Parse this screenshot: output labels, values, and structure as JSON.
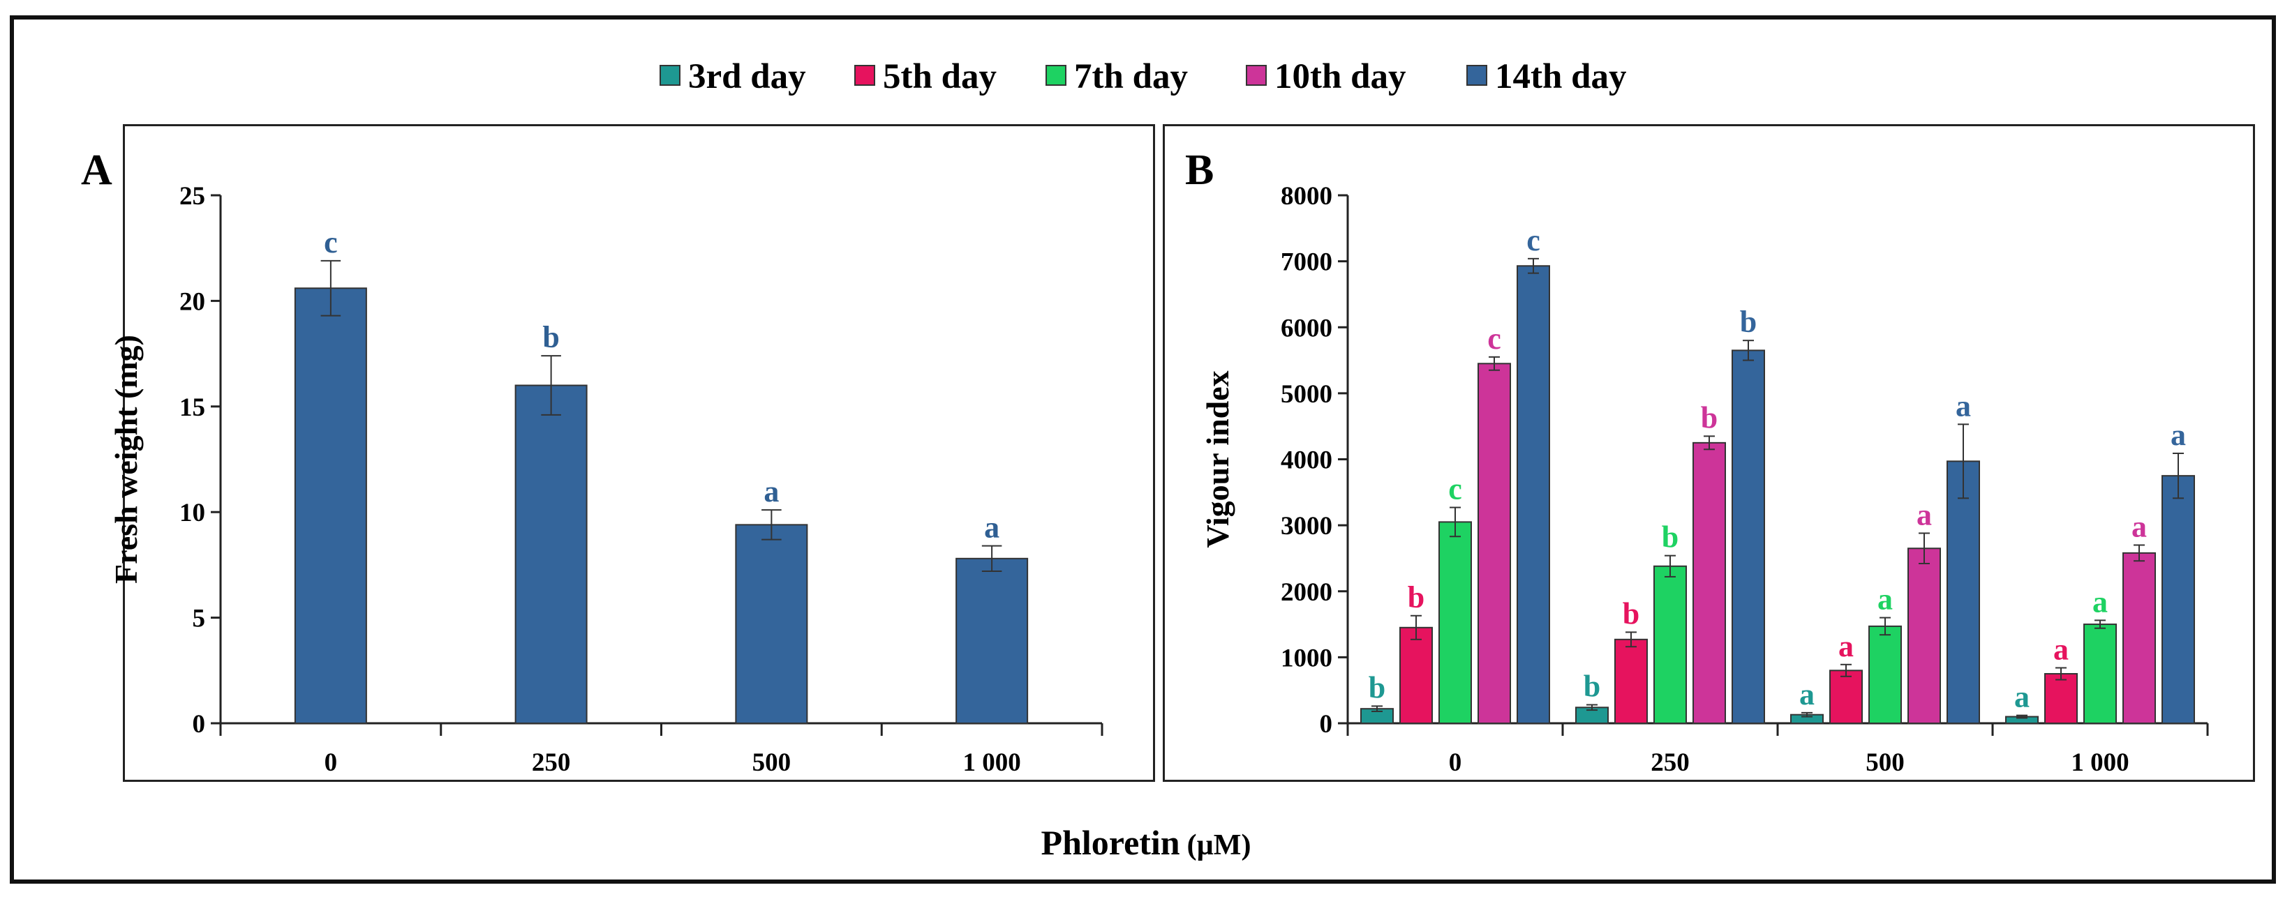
{
  "legend": [
    "3rd day",
    "5th day",
    "7th day",
    "10th day",
    "14th day"
  ],
  "colors": {
    "3rd day": "#1e9892",
    "5th day": "#e6135e",
    "7th day": "#1ed262",
    "10th day": "#cd3499",
    "14th day": "#34659b",
    "letter_default": "#2f5f93"
  },
  "x_axis_title": {
    "main": "Phloretin",
    "unit": "(µM)"
  },
  "chart_data": [
    {
      "type": "bar",
      "panel_label": "A",
      "categories": [
        "0",
        "250",
        "500",
        "1 000"
      ],
      "ylabel": "Fresh weight (mg)",
      "ylim": [
        0,
        25
      ],
      "yticks": [
        0,
        5,
        10,
        15,
        20,
        25
      ],
      "values": [
        20.6,
        16.0,
        9.4,
        7.8
      ],
      "errors": [
        1.3,
        1.4,
        0.7,
        0.6
      ],
      "letters": [
        "c",
        "b",
        "a",
        "a"
      ],
      "grid": false
    },
    {
      "type": "bar",
      "panel_label": "B",
      "categories": [
        "0",
        "250",
        "500",
        "1 000"
      ],
      "ylabel": "Vigour index",
      "ylim": [
        0,
        8000
      ],
      "yticks": [
        0,
        1000,
        2000,
        3000,
        4000,
        5000,
        6000,
        7000,
        8000
      ],
      "grid": false,
      "series": [
        {
          "name": "3rd day",
          "values": [
            220,
            240,
            130,
            100
          ],
          "errors": [
            40,
            40,
            30,
            20
          ],
          "letters": [
            "b",
            "b",
            "a",
            "a"
          ]
        },
        {
          "name": "5th day",
          "values": [
            1450,
            1270,
            800,
            750
          ],
          "errors": [
            180,
            110,
            90,
            90
          ],
          "letters": [
            "b",
            "b",
            "a",
            "a"
          ]
        },
        {
          "name": "7th day",
          "values": [
            3050,
            2380,
            1470,
            1500
          ],
          "errors": [
            220,
            160,
            130,
            60
          ],
          "letters": [
            "c",
            "b",
            "a",
            "a"
          ]
        },
        {
          "name": "10th day",
          "values": [
            5450,
            4250,
            2650,
            2580
          ],
          "errors": [
            100,
            100,
            230,
            120
          ],
          "letters": [
            "c",
            "b",
            "a",
            "a"
          ]
        },
        {
          "name": "14th day",
          "values": [
            6930,
            5650,
            3970,
            3750
          ],
          "errors": [
            110,
            150,
            560,
            340
          ],
          "letters": [
            "c",
            "b",
            "a",
            "a"
          ]
        }
      ]
    }
  ]
}
